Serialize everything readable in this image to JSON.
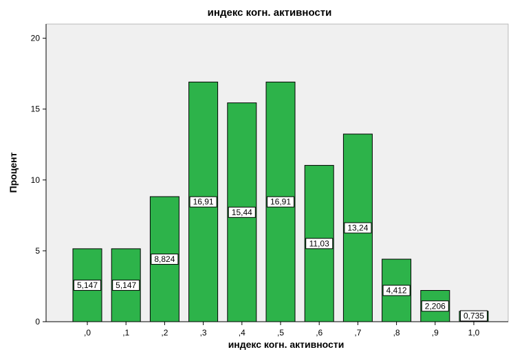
{
  "chart_data": {
    "type": "bar",
    "title": "индекс когн. активности",
    "xlabel": "индекс когн. активности",
    "ylabel": "Процент",
    "categories": [
      ",0",
      ",1",
      ",2",
      ",3",
      ",4",
      ",5",
      ",6",
      ",7",
      ",8",
      ",9",
      "1,0"
    ],
    "values": [
      5.147,
      5.147,
      8.824,
      16.91,
      15.44,
      16.91,
      11.03,
      13.24,
      4.412,
      2.206,
      0.735
    ],
    "data_labels": [
      "5,147",
      "5,147",
      "8,824",
      "16,91",
      "15,44",
      "16,91",
      "11,03",
      "13,24",
      "4,412",
      "2,206",
      "0,735"
    ],
    "ylim": [
      0,
      21
    ],
    "yticks": [
      0,
      5,
      10,
      15,
      20
    ],
    "grid": false,
    "legend": "none",
    "bar_color": "#2db34a",
    "plot_background": "#f0f0f0"
  }
}
